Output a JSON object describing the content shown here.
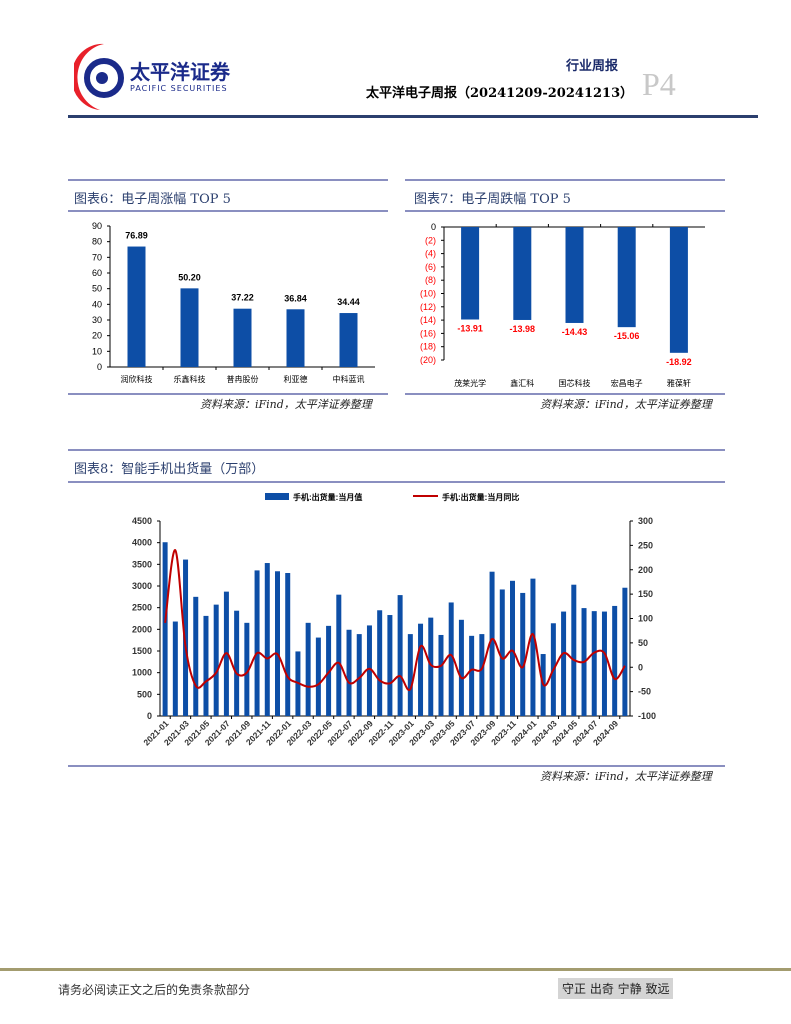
{
  "header": {
    "logo_cn": "太平洋证券",
    "logo_en": "PACIFIC SECURITIES",
    "category": "行业周报",
    "title": "太平洋电子周报（20241209-20241213）",
    "page": "P4"
  },
  "footer": {
    "disclaimer": "请务必阅读正文之后的免责条款部分",
    "motto": "守正 出奇 宁静 致远"
  },
  "colors": {
    "bar": "#0d4ea6",
    "line": "#c00000",
    "negative_label": "#ff0000",
    "rule": "#8a8fc0"
  },
  "figure6": {
    "title": "图表6：电子周涨幅 TOP 5",
    "source": "资料来源：iFind，太平洋证券整理"
  },
  "figure7": {
    "title": "图表7：电子周跌幅 TOP 5",
    "source": "资料来源：iFind，太平洋证券整理"
  },
  "figure8": {
    "title": "图表8：智能手机出货量（万部）",
    "source": "资料来源：iFind，太平洋证券整理"
  },
  "chart_data": [
    {
      "type": "bar",
      "title": "电子周涨幅 TOP 5",
      "categories": [
        "润欣科技",
        "乐鑫科技",
        "普冉股份",
        "利亚德",
        "中科蓝讯"
      ],
      "values": [
        76.89,
        50.2,
        37.22,
        36.84,
        34.44
      ],
      "labels": [
        "76.89",
        "50.20",
        "37.22",
        "36.84",
        "34.44"
      ],
      "ylim": [
        0,
        90
      ],
      "yticks": [
        "0",
        "10",
        "20",
        "30",
        "40",
        "50",
        "60",
        "70",
        "80",
        "90"
      ]
    },
    {
      "type": "bar",
      "title": "电子周跌幅 TOP 5",
      "categories": [
        "茂莱光学",
        "鑫汇科",
        "国芯科技",
        "宏昌电子",
        "雅葆轩"
      ],
      "values": [
        -13.91,
        -13.98,
        -14.43,
        -15.06,
        -18.92
      ],
      "labels": [
        "-13.91",
        "-13.98",
        "-14.43",
        "-15.06",
        "-18.92"
      ],
      "ylim": [
        -20,
        0
      ],
      "yticks": [
        "0",
        "(2)",
        "(4)",
        "(6)",
        "(8)",
        "(10)",
        "(12)",
        "(14)",
        "(16)",
        "(18)",
        "(20)"
      ]
    },
    {
      "type": "bar+line",
      "title": "智能手机出货量（万部）",
      "legend": [
        "手机:出货量:当月值",
        "手机:出货量:当月同比"
      ],
      "x": [
        "2021-01",
        "2021-02",
        "2021-03",
        "2021-04",
        "2021-05",
        "2021-06",
        "2021-07",
        "2021-08",
        "2021-09",
        "2021-10",
        "2021-11",
        "2021-12",
        "2022-01",
        "2022-02",
        "2022-03",
        "2022-04",
        "2022-05",
        "2022-06",
        "2022-07",
        "2022-08",
        "2022-09",
        "2022-10",
        "2022-11",
        "2022-12",
        "2023-01",
        "2023-02",
        "2023-03",
        "2023-04",
        "2023-05",
        "2023-06",
        "2023-07",
        "2023-08",
        "2023-09",
        "2023-10",
        "2023-11",
        "2023-12",
        "2024-01",
        "2024-02",
        "2024-03",
        "2024-04",
        "2024-05",
        "2024-06",
        "2024-07",
        "2024-08",
        "2024-09",
        "2024-10"
      ],
      "xticks": [
        "2021-01",
        "2021-03",
        "2021-05",
        "2021-07",
        "2021-09",
        "2021-11",
        "2022-01",
        "2022-03",
        "2022-05",
        "2022-07",
        "2022-09",
        "2022-11",
        "2023-01",
        "2023-03",
        "2023-05",
        "2023-07",
        "2023-09",
        "2023-11",
        "2024-01",
        "2024-03",
        "2024-05",
        "2024-07",
        "2024-09"
      ],
      "series": [
        {
          "name": "手机:出货量:当月值",
          "axis": "left",
          "values": [
            4010,
            2180,
            3610,
            2750,
            2310,
            2570,
            2870,
            2430,
            2150,
            3360,
            3530,
            3340,
            3300,
            1490,
            2150,
            1810,
            2080,
            2800,
            1990,
            1890,
            2090,
            2440,
            2330,
            2790,
            1890,
            2130,
            2270,
            1870,
            2620,
            2220,
            1850,
            1890,
            3330,
            2920,
            3120,
            2840,
            3170,
            1430,
            2140,
            2410,
            3030,
            2490,
            2420,
            2410,
            2540,
            2960
          ]
        },
        {
          "name": "手机:出货量:当月同比",
          "axis": "right",
          "values": [
            91,
            240,
            42,
            -38,
            -29,
            -11,
            29,
            -13,
            -11,
            29,
            18,
            27,
            -20,
            -32,
            -40,
            -35,
            -11,
            9,
            -32,
            -22,
            -3,
            -27,
            -33,
            -18,
            -45,
            43,
            5,
            3,
            25,
            -22,
            -5,
            -3,
            58,
            18,
            34,
            0,
            68,
            -35,
            -5,
            29,
            15,
            11,
            30,
            29,
            -24,
            3
          ]
        }
      ],
      "ylim_left": [
        0,
        4500
      ],
      "ylim_right": [
        -100,
        300
      ],
      "yticks_left": [
        "0",
        "500",
        "1000",
        "1500",
        "2000",
        "2500",
        "3000",
        "3500",
        "4000",
        "4500"
      ],
      "yticks_right": [
        "-100",
        "-50",
        "0",
        "50",
        "100",
        "150",
        "200",
        "250",
        "300"
      ]
    }
  ]
}
